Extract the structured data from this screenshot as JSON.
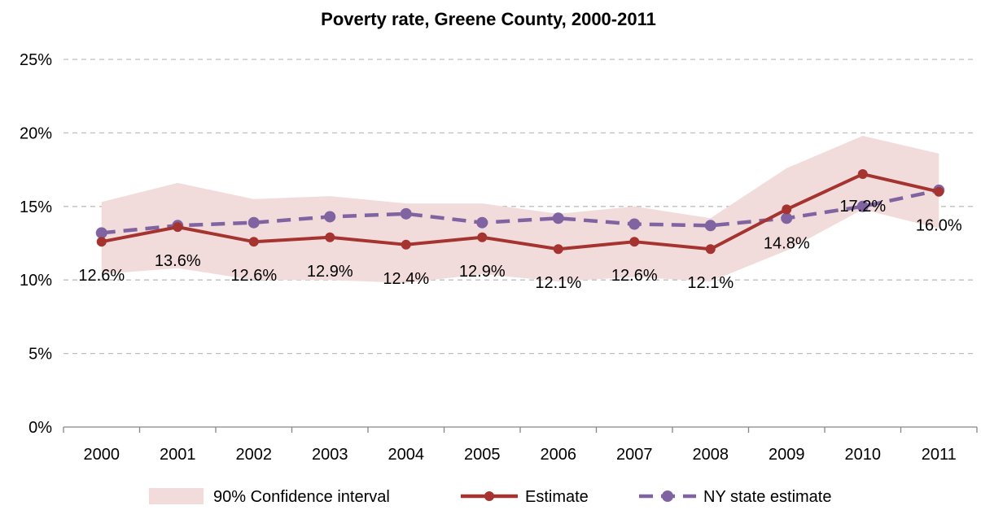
{
  "chart_data": {
    "type": "line",
    "title": "Poverty rate, Greene County, 2000-2011",
    "xlabel": "",
    "ylabel": "",
    "categories": [
      "2000",
      "2001",
      "2002",
      "2003",
      "2004",
      "2005",
      "2006",
      "2007",
      "2008",
      "2009",
      "2010",
      "2011"
    ],
    "ylim": [
      0,
      25
    ],
    "yticks": [
      "0%",
      "5%",
      "10%",
      "15%",
      "20%",
      "25%"
    ],
    "grid": true,
    "legend_position": "bottom",
    "confidence_interval": {
      "name": "90% Confidence interval",
      "color": "#f2dcdb",
      "lower": [
        10.4,
        10.8,
        10.0,
        10.0,
        9.8,
        10.4,
        9.9,
        10.2,
        9.9,
        12.0,
        14.8,
        13.5
      ],
      "upper": [
        15.3,
        16.6,
        15.5,
        15.7,
        15.2,
        15.2,
        14.5,
        15.0,
        14.2,
        17.6,
        19.8,
        18.6
      ]
    },
    "series": [
      {
        "name": "Estimate",
        "color": "#a5332f",
        "style": "solid",
        "values": [
          12.6,
          13.6,
          12.6,
          12.9,
          12.4,
          12.9,
          12.1,
          12.6,
          12.1,
          14.8,
          17.2,
          16.0
        ],
        "labels": [
          "12.6%",
          "13.6%",
          "12.6%",
          "12.9%",
          "12.4%",
          "12.9%",
          "12.1%",
          "12.6%",
          "12.1%",
          "14.8%",
          "17.2%",
          "16.0%"
        ]
      },
      {
        "name": "NY state estimate",
        "color": "#8064a2",
        "style": "dashed",
        "values": [
          13.2,
          13.7,
          13.9,
          14.3,
          14.5,
          13.9,
          14.2,
          13.8,
          13.7,
          14.2,
          15.0,
          16.1
        ]
      }
    ]
  }
}
